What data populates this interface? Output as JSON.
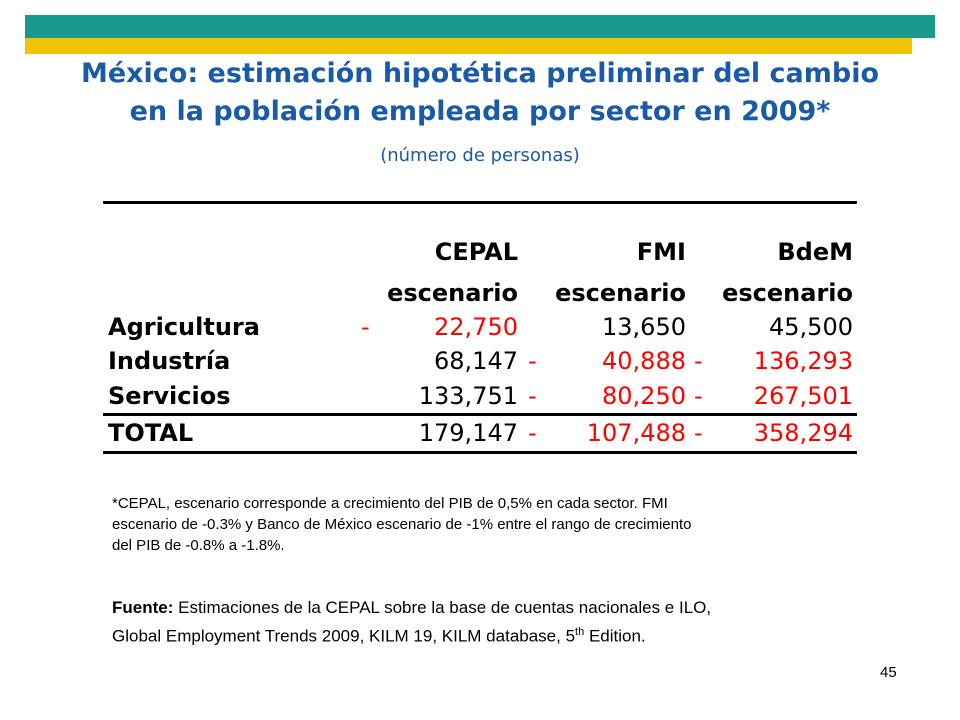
{
  "colors": {
    "teal": "#1a9a8c",
    "yellow": "#f0c400",
    "title": "#1a5aa6",
    "red": "#ff0000"
  },
  "title_line1": "México: estimación hipotética preliminar del cambio",
  "title_line2": "en la población empleada por sector en 2009*",
  "subtitle": "(número de personas)",
  "table": {
    "headers": [
      {
        "line1": "CEPAL",
        "line2": "escenario"
      },
      {
        "line1": "FMI",
        "line2": "escenario"
      },
      {
        "line1": "BdeM",
        "line2": "escenario"
      }
    ],
    "rows": [
      {
        "label": "Agricultura",
        "cells": [
          {
            "sign": "-",
            "value": "22,750",
            "negative": true
          },
          {
            "sign": "",
            "value": "13,650",
            "negative": false
          },
          {
            "sign": "",
            "value": "45,500",
            "negative": false
          }
        ]
      },
      {
        "label": "Industría",
        "cells": [
          {
            "sign": "",
            "value": "68,147",
            "negative": false
          },
          {
            "sign": "-",
            "value": "40,888",
            "negative": true
          },
          {
            "sign": "-",
            "value": "136,293",
            "negative": true
          }
        ]
      },
      {
        "label": "Servicios",
        "cells": [
          {
            "sign": "",
            "value": "133,751",
            "negative": false
          },
          {
            "sign": "-",
            "value": "80,250",
            "negative": true
          },
          {
            "sign": "-",
            "value": "267,501",
            "negative": true
          }
        ]
      },
      {
        "label": "TOTAL",
        "cells": [
          {
            "sign": "",
            "value": "179,147",
            "negative": false
          },
          {
            "sign": "-",
            "value": "107,488",
            "negative": true
          },
          {
            "sign": "-",
            "value": "358,294",
            "negative": true
          }
        ]
      }
    ]
  },
  "footnote_lines": [
    "*CEPAL, escenario corresponde a crecimiento del PIB de 0,5% en cada sector. FMI",
    "escenario de -0.3% y Banco de México escenario de -1% entre el rango de crecimiento",
    "del PIB de -0.8% a -1.8%."
  ],
  "source": {
    "label": "Fuente:",
    "line1_rest": " Estimaciones de la CEPAL sobre la base de cuentas nacionales e ILO,",
    "line2_pre": "Global Employment Trends 2009, KILM 19, KILM database, 5",
    "line2_sup": "th",
    "line2_post": " Edition."
  },
  "page_number": "45"
}
